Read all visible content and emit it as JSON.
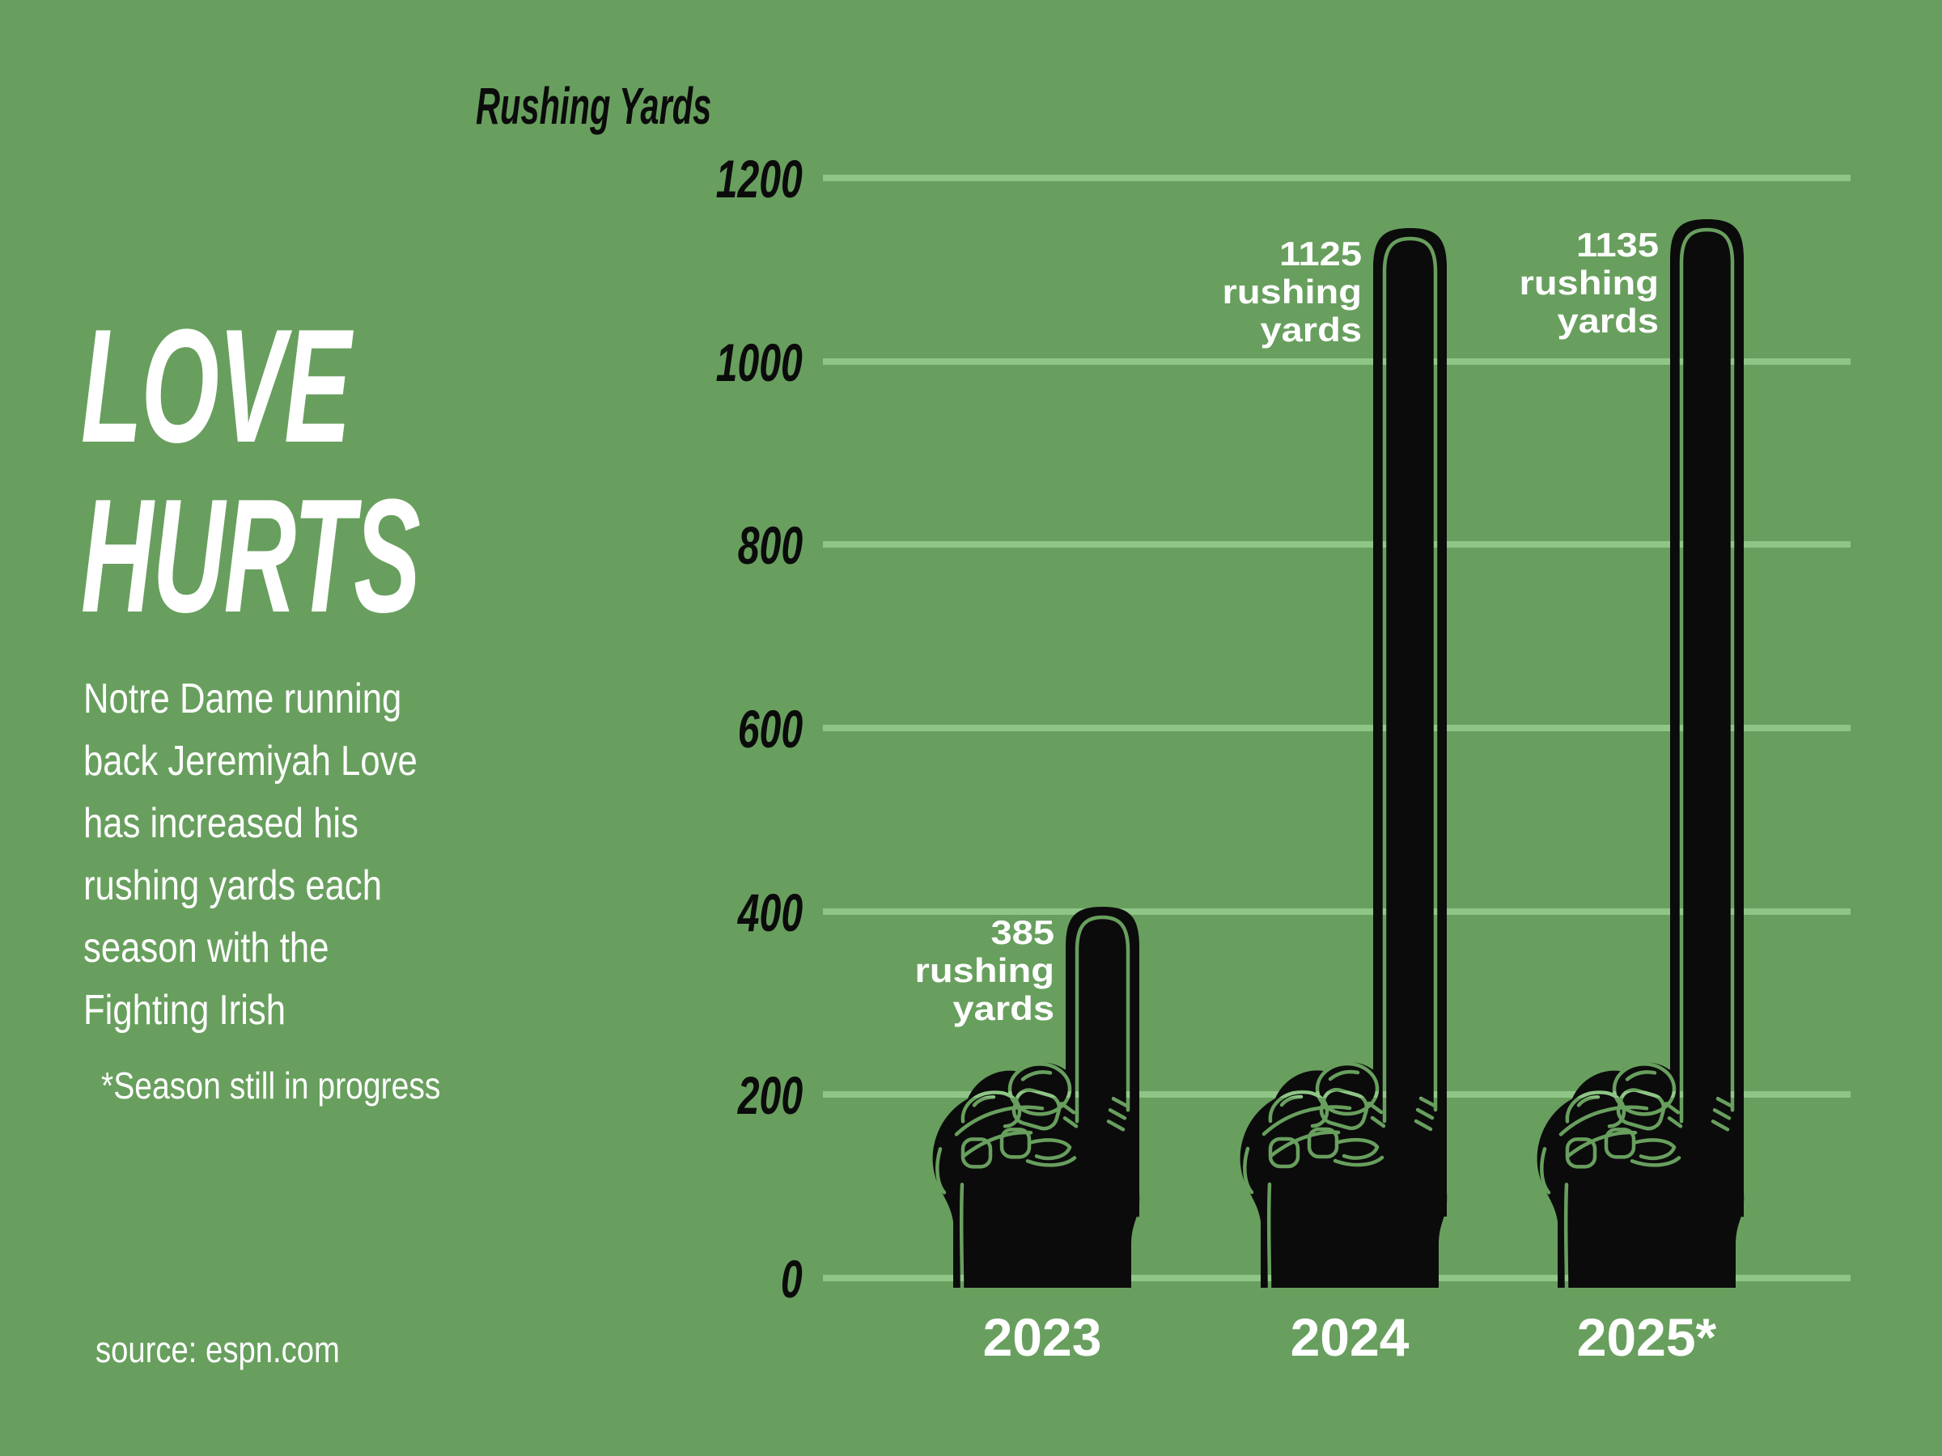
{
  "title": {
    "line1": "LOVE",
    "line2": "HURTS"
  },
  "description": {
    "lines": [
      "Notre Dame running",
      "back Jeremiyah Love",
      "has increased his",
      "rushing yards each",
      "season with the",
      "Fighting Irish"
    ]
  },
  "footnote": "*Season still in progress",
  "source": "source: espn.com",
  "chart_data": {
    "type": "bar",
    "title": "Rushing Yards",
    "ylabel": "Rushing Yards",
    "categories": [
      "2023",
      "2024",
      "2025*"
    ],
    "values": [
      385,
      1125,
      1135
    ],
    "bar_labels": [
      [
        "385",
        "rushing",
        "yards"
      ],
      [
        "1125",
        "rushing",
        "yards"
      ],
      [
        "1135",
        "rushing",
        "yards"
      ]
    ],
    "ylim": [
      0,
      1200
    ],
    "yticks": [
      0,
      200,
      400,
      600,
      800,
      1000,
      1200
    ],
    "grid": true,
    "legend": "none",
    "bar_style": "foam-finger-hand",
    "colors": {
      "background": "#689F5E",
      "gridline": "#8FC687",
      "bar": "#0B0B0B",
      "text_dark": "#0B0B0B",
      "text_light": "#FFFFFF"
    }
  }
}
